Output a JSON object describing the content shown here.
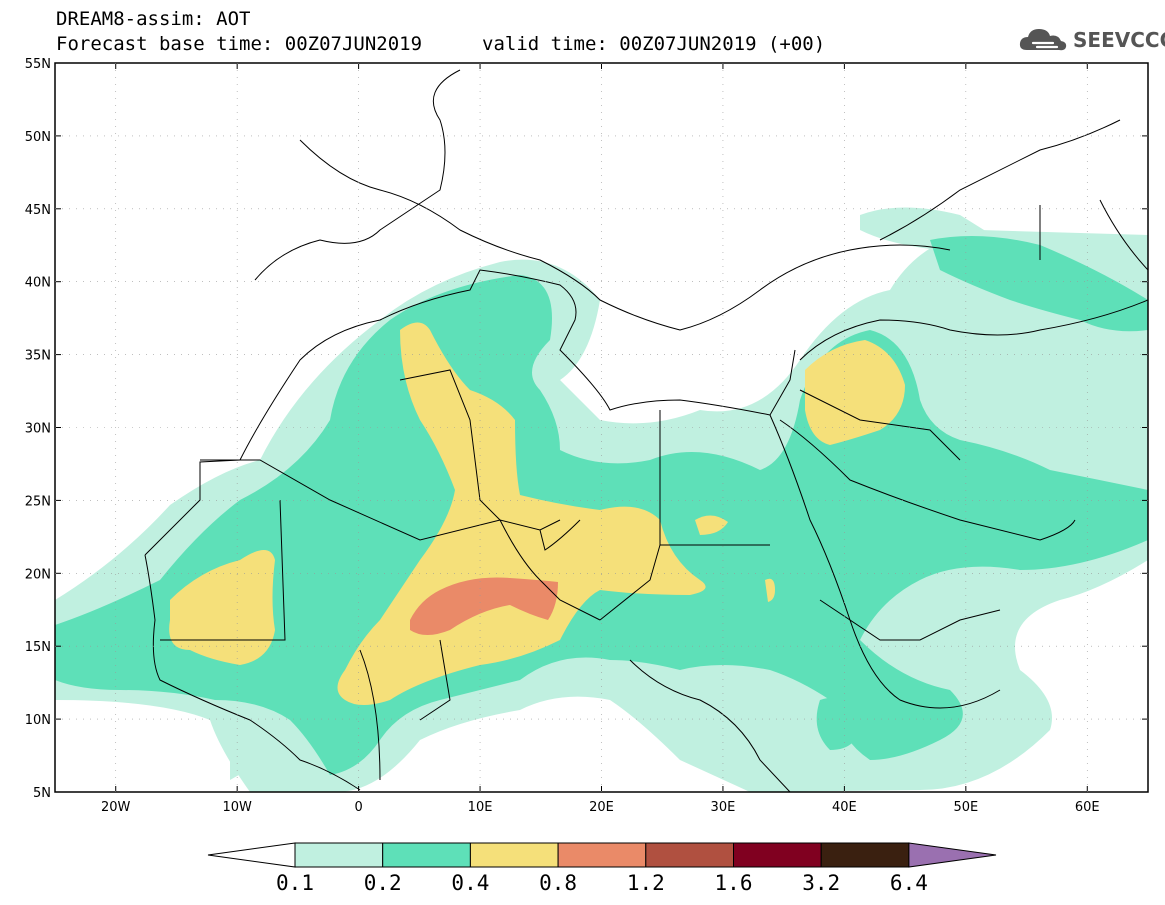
{
  "title": {
    "line1": "DREAM8-assim: AOT",
    "line2": "Forecast base time: 00Z07JUN2019",
    "valid": "valid time: 00Z07JUN2019 (+00)"
  },
  "logo": {
    "text": "SEEVCCC",
    "icon": "cloud-icon"
  },
  "map": {
    "lon_range": [
      -25,
      65
    ],
    "lat_range": [
      5,
      55
    ],
    "lat_ticks": [
      "5N",
      "10N",
      "15N",
      "20N",
      "25N",
      "30N",
      "35N",
      "40N",
      "45N",
      "50N",
      "55N"
    ],
    "lon_ticks": [
      "20W",
      "10W",
      "0",
      "10E",
      "20E",
      "30E",
      "40E",
      "50E",
      "60E"
    ]
  },
  "colorbar": {
    "labels": [
      "0.1",
      "0.2",
      "0.4",
      "0.8",
      "1.2",
      "1.6",
      "3.2",
      "6.4"
    ],
    "colors": [
      "#ffffff",
      "#c0f0e0",
      "#5ee0b8",
      "#f5e07a",
      "#ea8a68",
      "#b05040",
      "#800020",
      "#3a2010",
      "#9a70b0"
    ]
  }
}
